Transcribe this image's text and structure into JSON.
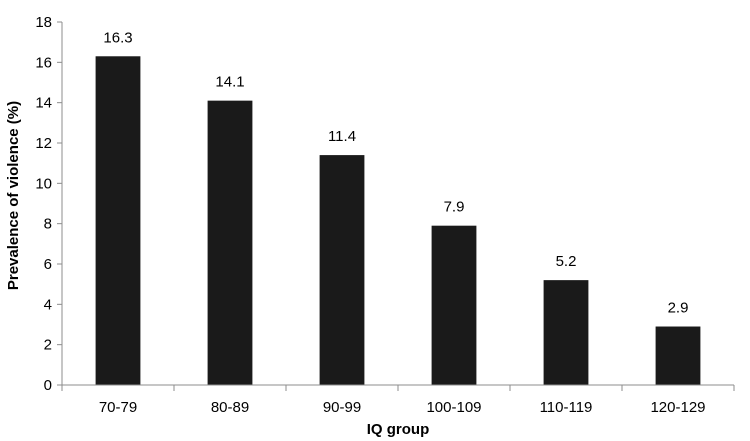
{
  "chart_data": {
    "type": "bar",
    "xlabel": "IQ group",
    "ylabel": "Prevalence of violence (%)",
    "categories": [
      "70-79",
      "80-89",
      "90-99",
      "100-109",
      "110-119",
      "120-129"
    ],
    "values": [
      16.3,
      14.1,
      11.4,
      7.9,
      5.2,
      2.9
    ],
    "value_labels": [
      "16.3",
      "14.1",
      "11.4",
      "7.9",
      "5.2",
      "2.9"
    ],
    "ylim": [
      0,
      18
    ],
    "yticks": [
      0,
      2,
      4,
      6,
      8,
      10,
      12,
      14,
      16,
      18
    ],
    "grid": false,
    "legend": "none",
    "bar_color": "#1a1a1a",
    "axis_color": "#8c8c8c"
  }
}
